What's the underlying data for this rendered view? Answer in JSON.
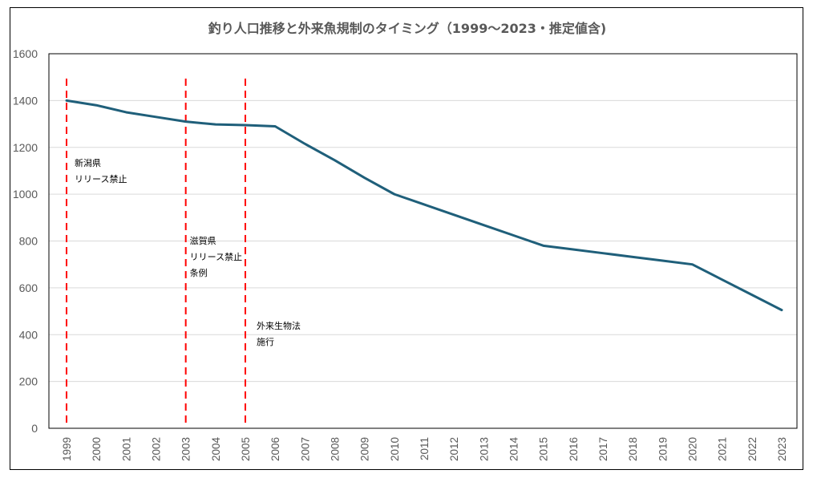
{
  "chart_data": {
    "type": "line",
    "title": "釣り人口推移と外来魚規制のタイミング（1999〜2023・推定値含)",
    "xlabel": "",
    "ylabel": "",
    "ylim": [
      0,
      1600
    ],
    "yticks": [
      "0",
      "200",
      "400",
      "600",
      "800",
      "1000",
      "1200",
      "1400",
      "1600"
    ],
    "grid": true,
    "legend": "none",
    "categories": [
      "1999",
      "2000",
      "2001",
      "2002",
      "2003",
      "2004",
      "2005",
      "2006",
      "2007",
      "2008",
      "2009",
      "2010",
      "2011",
      "2012",
      "2013",
      "2014",
      "2015",
      "2016",
      "2017",
      "2018",
      "2019",
      "2020",
      "2021",
      "2022",
      "2023"
    ],
    "series": [
      {
        "name": "釣り人口",
        "color": "#1f5f7a",
        "values": [
          1400,
          1380,
          1350,
          1330,
          1310,
          1298,
          1295,
          1290,
          1215,
          1145,
          1070,
          1000,
          956,
          912,
          868,
          824,
          780,
          764,
          748,
          732,
          716,
          700,
          635,
          570,
          505
        ]
      }
    ],
    "annotations": [
      {
        "year": "1999",
        "lines": [
          "新潟県",
          "リリース禁止"
        ]
      },
      {
        "year": "2003",
        "lines": [
          "滋賀県",
          "リリース禁止",
          "条例"
        ]
      },
      {
        "year": "2005",
        "lines": [
          "外来生物法",
          "施行"
        ]
      }
    ],
    "vline_color": "#ff0000"
  }
}
